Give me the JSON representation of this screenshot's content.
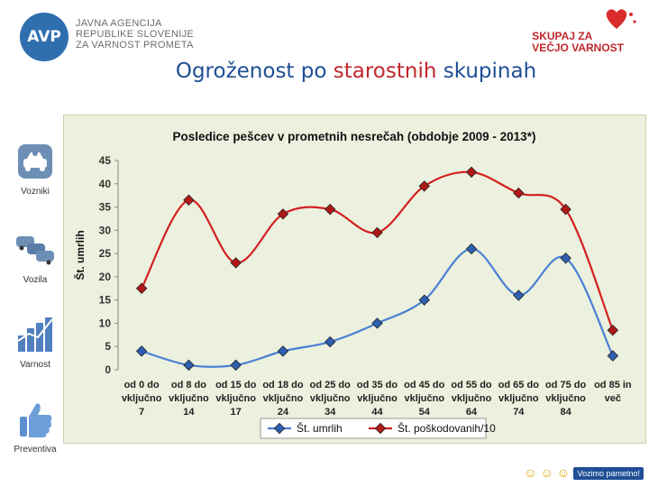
{
  "header": {
    "agency_lines": [
      "JAVNA AGENCIJA",
      "REPUBLIKE SLOVENIJE",
      "ZA VARNOST PROMETA"
    ],
    "agency_logo_text": "AVP",
    "campaign_lines": [
      "SKUPAJ ZA",
      "VEČJO VARNOST"
    ],
    "title_part1": "Ogroženost po ",
    "title_part2": "starostnih",
    "title_part3": " skupinah"
  },
  "sidebar": {
    "items": [
      {
        "label": "Vozniki",
        "icon": "car-icon"
      },
      {
        "label": "Vozila",
        "icon": "cars-icon"
      },
      {
        "label": "Varnost",
        "icon": "bar-chart-icon"
      },
      {
        "label": "Preventiva",
        "icon": "thumbs-up-icon"
      }
    ]
  },
  "footer": {
    "badge_text": "Vozimo pametno!"
  },
  "colors": {
    "red": "#c0272d",
    "blue": "#1f4e96",
    "chart_bg": "#ebf1de",
    "series_blue": "#4a7fd4",
    "series_red": "#d42020"
  },
  "chart_data": {
    "type": "line",
    "title": "Posledice pešcev v prometnih nesrečah (obdobje 2009 - 2013*)",
    "ylabel": "Št. umrlih",
    "xlabel": "",
    "ylim": [
      0,
      45
    ],
    "yticks": [
      0,
      5,
      10,
      15,
      20,
      25,
      30,
      35,
      40,
      45
    ],
    "grid": false,
    "legend_position": "bottom",
    "categories": [
      [
        "od 0 do",
        "vključno",
        "7"
      ],
      [
        "od 8 do",
        "vključno",
        "14"
      ],
      [
        "od 15 do",
        "vključno",
        "17"
      ],
      [
        "od 18 do",
        "vključno",
        "24"
      ],
      [
        "od 25 do",
        "vključno",
        "34"
      ],
      [
        "od 35 do",
        "vključno",
        "44"
      ],
      [
        "od 45 do",
        "vključno",
        "54"
      ],
      [
        "od 55 do",
        "vključno",
        "64"
      ],
      [
        "od 65 do",
        "vključno",
        "74"
      ],
      [
        "od 75 do",
        "vključno",
        "84"
      ],
      [
        "od 85 in",
        "več",
        ""
      ]
    ],
    "series": [
      {
        "name": "Št. umrlih",
        "color": "#4a7fd4",
        "marker": "#2e5fb0",
        "values": [
          4,
          1,
          1,
          4,
          6,
          10,
          15,
          26,
          16,
          24,
          3
        ]
      },
      {
        "name": "Št. poškodovanih/10",
        "color": "#d42020",
        "marker": "#b01818",
        "values": [
          17.5,
          36.5,
          23,
          33.5,
          34.5,
          29.5,
          39.5,
          42.5,
          38,
          34.5,
          8.5
        ]
      }
    ]
  }
}
